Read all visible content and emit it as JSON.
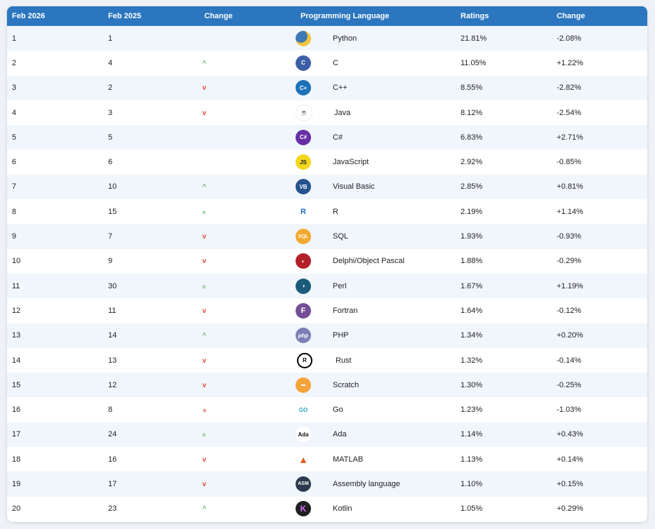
{
  "headers": {
    "rank_now": "Feb 2026",
    "rank_prev": "Feb 2025",
    "change": "Change",
    "language": "Programming Language",
    "ratings": "Ratings",
    "ratings_change": "Change"
  },
  "rows": [
    {
      "rank_now": "1",
      "rank_prev": "1",
      "trend": "none",
      "icon": "python-icon",
      "logo_text": "",
      "language": "Python",
      "rating": "21.81%",
      "change": "-2.08%"
    },
    {
      "rank_now": "2",
      "rank_prev": "4",
      "trend": "up",
      "icon": "c-icon",
      "logo_text": "C",
      "language": "C",
      "rating": "11.05%",
      "change": "+1.22%"
    },
    {
      "rank_now": "3",
      "rank_prev": "2",
      "trend": "down",
      "icon": "cpp-icon",
      "logo_text": "C+",
      "language": "C++",
      "rating": "8.55%",
      "change": "-2.82%"
    },
    {
      "rank_now": "4",
      "rank_prev": "3",
      "trend": "down",
      "icon": "java-icon",
      "logo_text": "☕",
      "language": "Java",
      "rating": "8.12%",
      "change": "-2.54%"
    },
    {
      "rank_now": "5",
      "rank_prev": "5",
      "trend": "none",
      "icon": "csharp-icon",
      "logo_text": "C#",
      "language": "C#",
      "rating": "6.83%",
      "change": "+2.71%"
    },
    {
      "rank_now": "6",
      "rank_prev": "6",
      "trend": "none",
      "icon": "javascript-icon",
      "logo_text": "JS",
      "language": "JavaScript",
      "rating": "2.92%",
      "change": "-0.85%"
    },
    {
      "rank_now": "7",
      "rank_prev": "10",
      "trend": "up",
      "icon": "visual-basic-icon",
      "logo_text": "VB",
      "language": "Visual Basic",
      "rating": "2.85%",
      "change": "+0.81%"
    },
    {
      "rank_now": "8",
      "rank_prev": "15",
      "trend": "up2",
      "icon": "r-icon",
      "logo_text": "R",
      "language": "R",
      "rating": "2.19%",
      "change": "+1.14%"
    },
    {
      "rank_now": "9",
      "rank_prev": "7",
      "trend": "down",
      "icon": "sql-icon",
      "logo_text": "SQL",
      "language": "SQL",
      "rating": "1.93%",
      "change": "-0.93%"
    },
    {
      "rank_now": "10",
      "rank_prev": "9",
      "trend": "down",
      "icon": "delphi-icon",
      "logo_text": "◐",
      "language": "Delphi/Object Pascal",
      "rating": "1.88%",
      "change": "-0.29%"
    },
    {
      "rank_now": "11",
      "rank_prev": "30",
      "trend": "up2",
      "icon": "perl-icon",
      "logo_text": "◑",
      "language": "Perl",
      "rating": "1.67%",
      "change": "+1.19%"
    },
    {
      "rank_now": "12",
      "rank_prev": "11",
      "trend": "down",
      "icon": "fortran-icon",
      "logo_text": "F",
      "language": "Fortran",
      "rating": "1.64%",
      "change": "-0.12%"
    },
    {
      "rank_now": "13",
      "rank_prev": "14",
      "trend": "up",
      "icon": "php-icon",
      "logo_text": "php",
      "language": "PHP",
      "rating": "1.34%",
      "change": "+0.20%"
    },
    {
      "rank_now": "14",
      "rank_prev": "13",
      "trend": "down",
      "icon": "rust-icon",
      "logo_text": "R",
      "language": "Rust",
      "rating": "1.32%",
      "change": "-0.14%"
    },
    {
      "rank_now": "15",
      "rank_prev": "12",
      "trend": "down",
      "icon": "scratch-icon",
      "logo_text": "▬",
      "language": "Scratch",
      "rating": "1.30%",
      "change": "-0.25%"
    },
    {
      "rank_now": "16",
      "rank_prev": "8",
      "trend": "down2",
      "icon": "go-icon",
      "logo_text": "GO",
      "language": "Go",
      "rating": "1.23%",
      "change": "-1.03%"
    },
    {
      "rank_now": "17",
      "rank_prev": "24",
      "trend": "up2",
      "icon": "ada-icon",
      "logo_text": "Ada",
      "language": "Ada",
      "rating": "1.14%",
      "change": "+0.43%"
    },
    {
      "rank_now": "18",
      "rank_prev": "16",
      "trend": "down",
      "icon": "matlab-icon",
      "logo_text": "▲",
      "language": "MATLAB",
      "rating": "1.13%",
      "change": "+0.14%"
    },
    {
      "rank_now": "19",
      "rank_prev": "17",
      "trend": "down",
      "icon": "assembly-icon",
      "logo_text": "ASM",
      "language": "Assembly language",
      "rating": "1.10%",
      "change": "+0.15%"
    },
    {
      "rank_now": "20",
      "rank_prev": "23",
      "trend": "up",
      "icon": "kotlin-icon",
      "logo_text": "K",
      "language": "Kotlin",
      "rating": "1.05%",
      "change": "+0.29%"
    }
  ],
  "trend_glyphs": {
    "up": "^",
    "down": "v",
    "up2": "»",
    "down2": "»"
  },
  "colors": {
    "header": "#2b76bf",
    "row_alt": "#f0f6fc",
    "trend_up": "#6cbf6a",
    "trend_down": "#e34a3b"
  }
}
